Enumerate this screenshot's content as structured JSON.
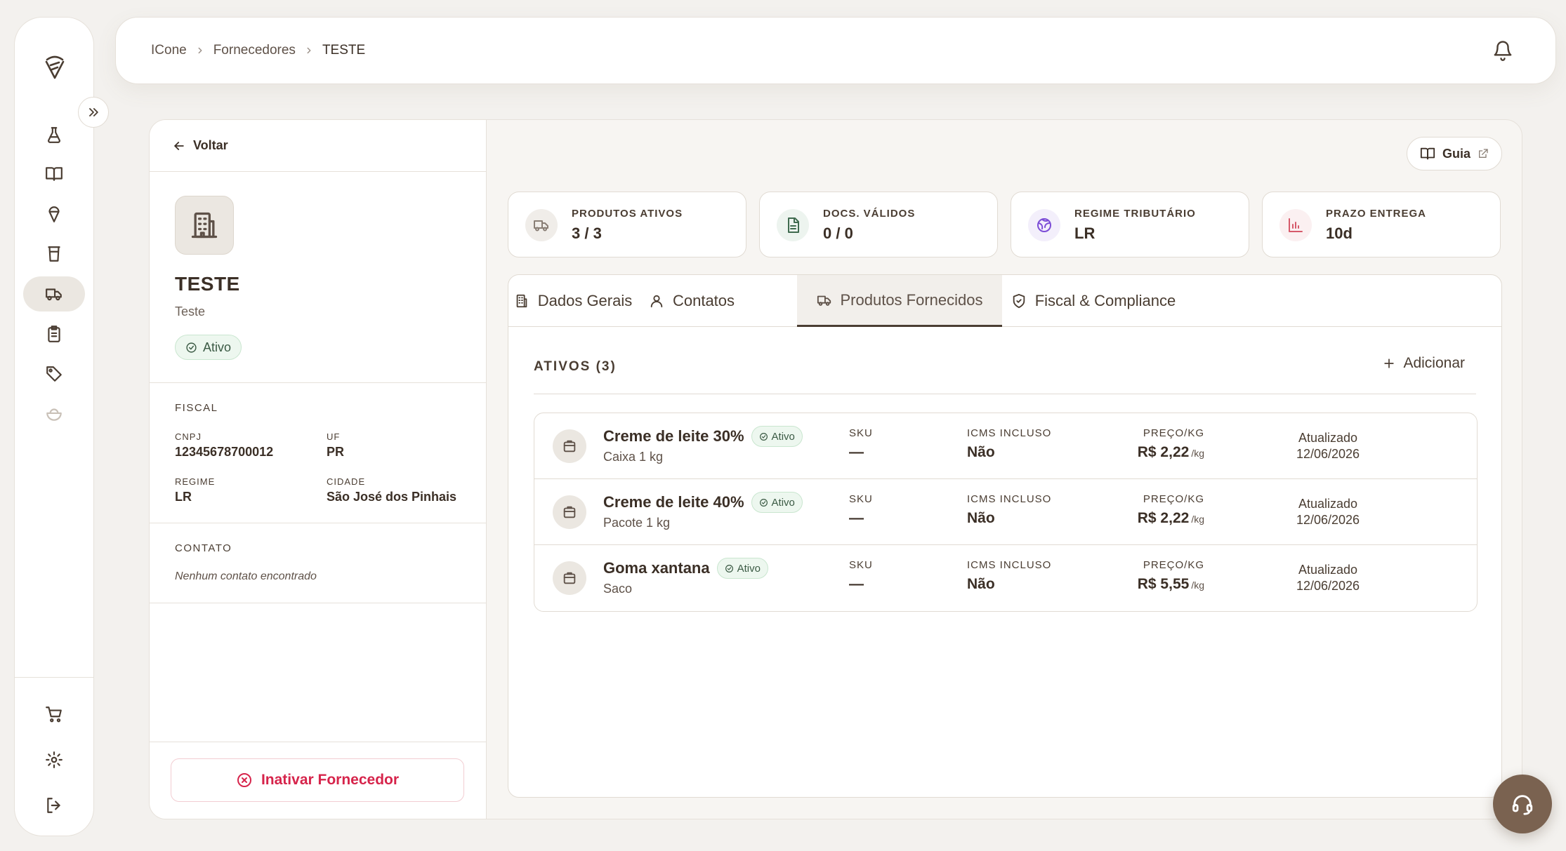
{
  "breadcrumb": {
    "root": "ICone",
    "section": "Fornecedores",
    "current": "TESTE"
  },
  "supplier": {
    "back_label": "Voltar",
    "name": "TESTE",
    "subtitle": "Teste",
    "status": "Ativo",
    "fiscal": {
      "title": "FISCAL",
      "cnpj_label": "CNPJ",
      "cnpj": "12345678700012",
      "uf_label": "UF",
      "uf": "PR",
      "regime_label": "REGIME",
      "regime": "LR",
      "cidade_label": "CIDADE",
      "cidade": "São José dos Pinhais"
    },
    "contato": {
      "title": "CONTATO",
      "empty": "Nenhum contato encontrado"
    },
    "inactivate_label": "Inativar Fornecedor"
  },
  "guide_label": "Guia",
  "stats": [
    {
      "label": "PRODUTOS ATIVOS",
      "value": "3 / 3",
      "icon": "truck-icon",
      "color": "#8a7f76"
    },
    {
      "label": "DOCS. VÁLIDOS",
      "value": "0 / 0",
      "icon": "document-icon",
      "color": "#3f6b4f"
    },
    {
      "label": "REGIME TRIBUTÁRIO",
      "value": "LR",
      "icon": "globe-icon",
      "color": "#7c4dd6"
    },
    {
      "label": "PRAZO ENTREGA",
      "value": "10d",
      "icon": "bar-chart-icon",
      "color": "#d65a6b"
    }
  ],
  "tabs": [
    {
      "label": "Dados Gerais",
      "icon": "building-icon"
    },
    {
      "label": "Contatos",
      "icon": "user-icon"
    },
    {
      "label": "Produtos Fornecidos",
      "icon": "truck-icon",
      "active": true
    },
    {
      "label": "Fiscal & Compliance",
      "icon": "shield-check-icon"
    }
  ],
  "products_section": {
    "title": "ATIVOS (3)",
    "add_label": "Adicionar"
  },
  "columns": {
    "sku": "SKU",
    "icms": "ICMS INCLUSO",
    "price": "PREÇO/KG",
    "updated": "Atualizado"
  },
  "products": [
    {
      "name": "Creme de leite 30%",
      "status": "Ativo",
      "pack": "Caixa 1 kg",
      "sku": "—",
      "icms": "Não",
      "price": "R$ 2,22",
      "unit": "/kg",
      "updated": "12/06/2026"
    },
    {
      "name": "Creme de leite 40%",
      "status": "Ativo",
      "pack": "Pacote 1 kg",
      "sku": "—",
      "icms": "Não",
      "price": "R$ 2,22",
      "unit": "/kg",
      "updated": "12/06/2026"
    },
    {
      "name": "Goma xantana",
      "status": "Ativo",
      "pack": "Saco",
      "sku": "—",
      "icms": "Não",
      "price": "R$ 5,55",
      "unit": "/kg",
      "updated": "12/06/2026"
    }
  ]
}
